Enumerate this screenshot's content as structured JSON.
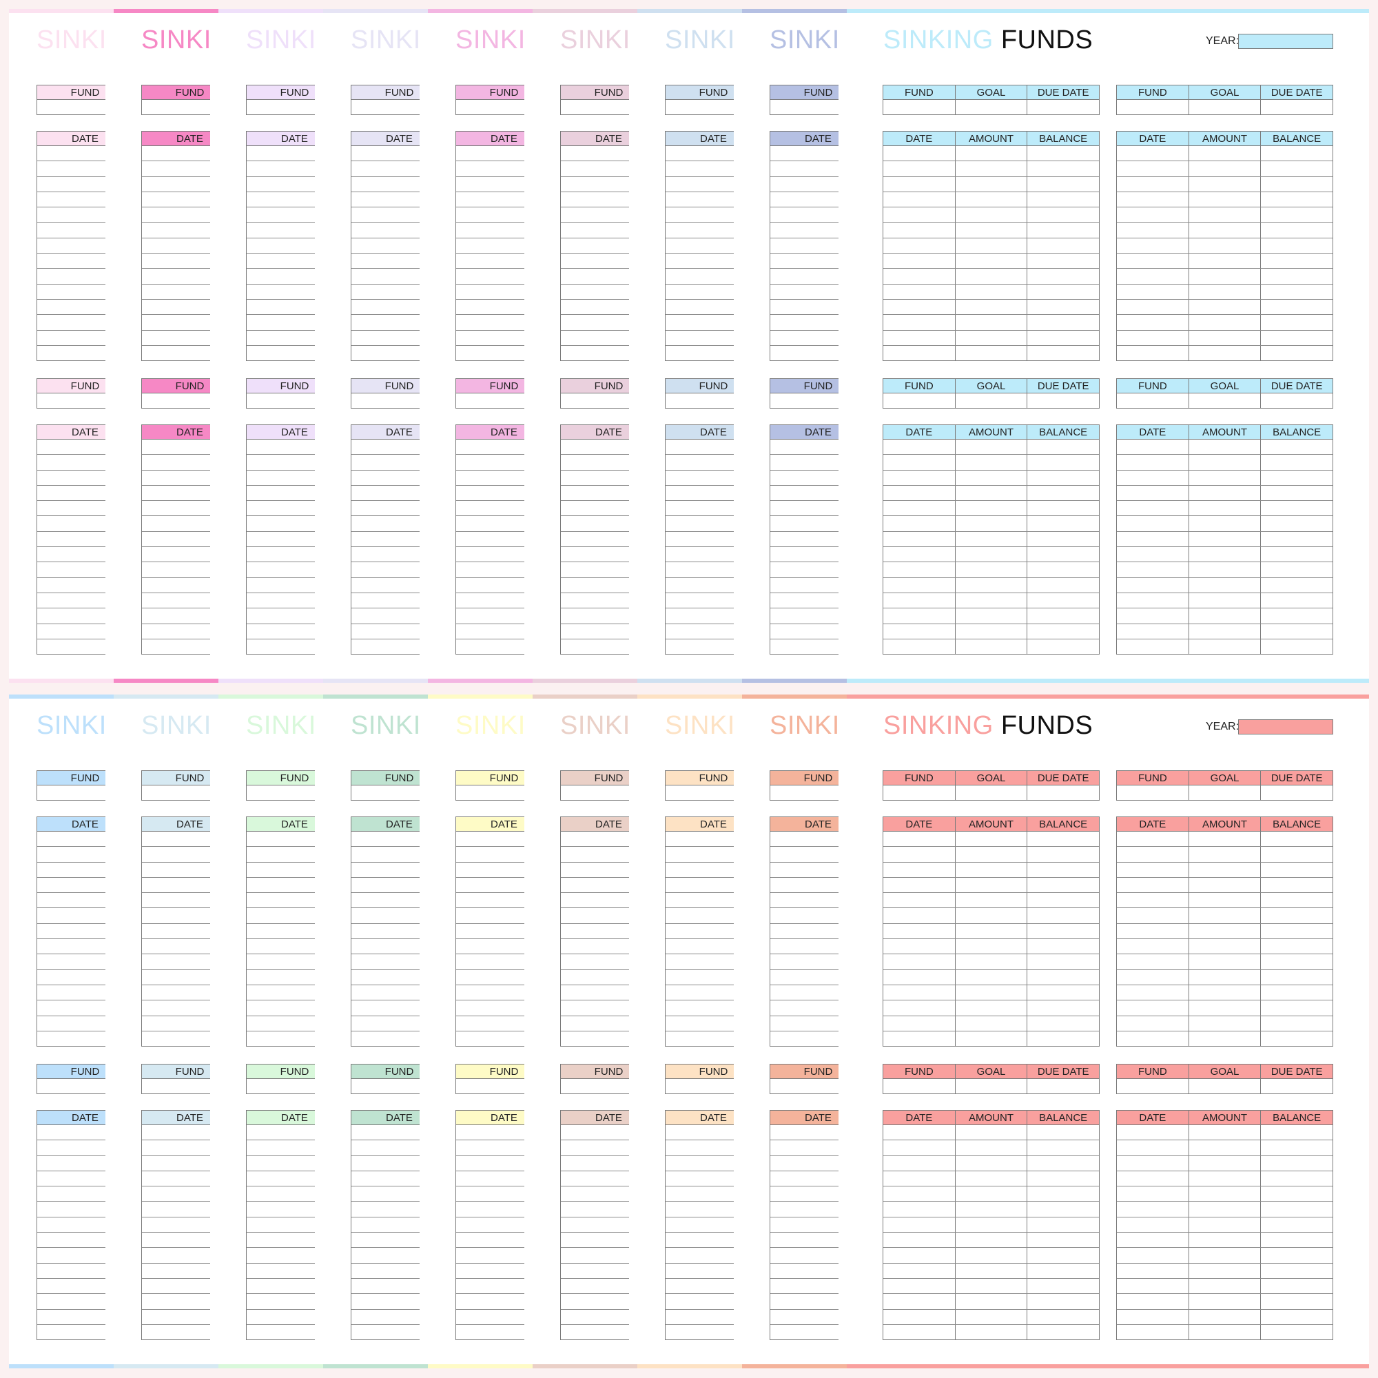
{
  "title_part1": "SINKING",
  "title_part2": "FUNDS",
  "title_cut": "SINKI",
  "year_label": "YEAR:",
  "labels": {
    "fund": "FUND",
    "goal": "GOAL",
    "due_date": "DUE DATE",
    "date": "DATE",
    "amount": "AMOUNT",
    "balance": "BALANCE"
  },
  "pages": [
    {
      "accent": "#bdebfa",
      "colors": [
        "#fce1f0",
        "#f688c5",
        "#efe0fa",
        "#e6e4f5",
        "#f3b6e2",
        "#ead0dd",
        "#cfe0f0",
        "#b5c0e3",
        "#bdebfa"
      ]
    },
    {
      "accent": "#f9a09e",
      "colors": [
        "#bde0fb",
        "#d6e9f2",
        "#d9f8db",
        "#bfe3d1",
        "#fefbc6",
        "#ead0c7",
        "#fde2c4",
        "#f4b39b",
        "#f9a09e"
      ]
    }
  ]
}
